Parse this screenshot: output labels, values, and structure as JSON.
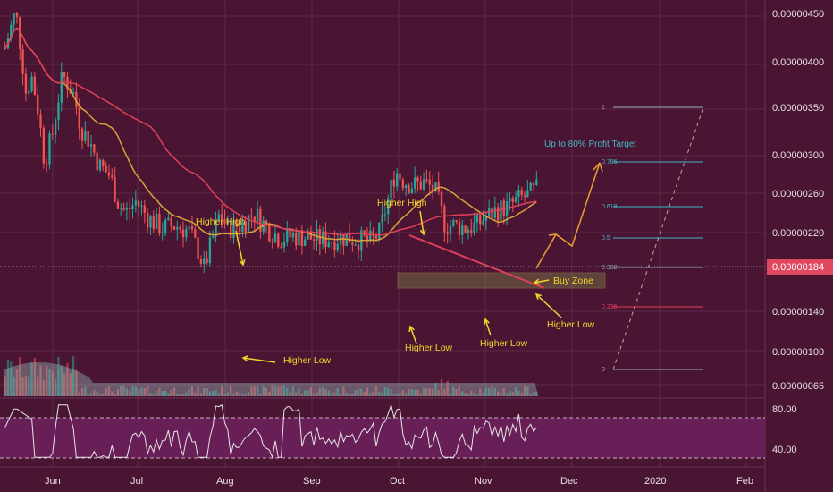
{
  "colors": {
    "background": "#4a1533",
    "grid": "#5a2a45",
    "up": "#26a69a",
    "down": "#ef5350",
    "ma_slow": "#e0405a",
    "ma_fast": "#d9a33a",
    "annotation": "#f2d52a",
    "target_text": "#3fb8c6",
    "rsi_line": "#e6e6e6",
    "rsi_band": "#6b1f5a",
    "buy_zone": "#8a9a4a"
  },
  "chart_data": {
    "type": "candlestick",
    "y_axis": {
      "labels": [
        "0.00000450",
        "0.00000400",
        "0.00000350",
        "0.00000300",
        "0.00000260",
        "0.00000220",
        "0.00000184",
        "0.00000140",
        "0.00000100",
        "0.00000065"
      ],
      "last_price": "0.00000184",
      "scale": "log"
    },
    "x_axis": {
      "labels": [
        "Jun",
        "Jul",
        "Aug",
        "Sep",
        "Oct",
        "Nov",
        "Dec",
        "2020",
        "Feb"
      ]
    },
    "price_series": [
      [
        0,
        380
      ],
      [
        0.4,
        460
      ],
      [
        0.8,
        300
      ],
      [
        1,
        330
      ],
      [
        1.2,
        290
      ],
      [
        1.5,
        210
      ],
      [
        1.8,
        240
      ],
      [
        2.2,
        330
      ],
      [
        2.6,
        300
      ],
      [
        2.9,
        250
      ],
      [
        3.2,
        235
      ],
      [
        3.6,
        205
      ],
      [
        4,
        195
      ],
      [
        4.3,
        170
      ],
      [
        4.6,
        160
      ],
      [
        5,
        170
      ],
      [
        5.5,
        155
      ],
      [
        6,
        148
      ],
      [
        6.5,
        150
      ],
      [
        7,
        146
      ],
      [
        7.4,
        130
      ],
      [
        7.6,
        120
      ],
      [
        7.8,
        132
      ],
      [
        8,
        145
      ],
      [
        8.2,
        160
      ],
      [
        8.5,
        148
      ],
      [
        9,
        150
      ],
      [
        9.5,
        160
      ],
      [
        10,
        148
      ],
      [
        10.5,
        140
      ],
      [
        11,
        142
      ],
      [
        11.5,
        141
      ],
      [
        12,
        139
      ],
      [
        12.5,
        140
      ],
      [
        13,
        141
      ],
      [
        13.5,
        139
      ],
      [
        14,
        138
      ],
      [
        14.3,
        145
      ],
      [
        14.6,
        170
      ],
      [
        14.9,
        200
      ],
      [
        15.2,
        190
      ],
      [
        15.6,
        185
      ],
      [
        16,
        188
      ],
      [
        16.4,
        180
      ],
      [
        16.8,
        150
      ],
      [
        17.2,
        150
      ],
      [
        17.6,
        148
      ],
      [
        18,
        150
      ],
      [
        18.4,
        158
      ],
      [
        18.8,
        163
      ],
      [
        19.2,
        165
      ],
      [
        19.6,
        172
      ],
      [
        20,
        176
      ],
      [
        20.4,
        183
      ]
    ],
    "rsi": {
      "labels": [
        "80.00",
        "40.00"
      ],
      "upper_band": 70,
      "lower_band": 30
    },
    "annotations": [
      {
        "id": "hh1",
        "text": "Higher High"
      },
      {
        "id": "hh2",
        "text": "Higher High"
      },
      {
        "id": "hl1",
        "text": "Higher Low"
      },
      {
        "id": "hl2",
        "text": "Higher Low"
      },
      {
        "id": "hl3",
        "text": "Higher Low"
      },
      {
        "id": "hl4",
        "text": "Higher Low"
      },
      {
        "id": "buy",
        "text": "Buy Zone"
      },
      {
        "id": "target",
        "text": "Up to 80% Profit Target"
      }
    ],
    "fib_levels": [
      {
        "label": "1",
        "color": "#9ab0c0"
      },
      {
        "label": "0.786",
        "color": "#3fb8c6"
      },
      {
        "label": "0.618",
        "color": "#3fb8c6"
      },
      {
        "label": "0.5",
        "color": "#3fb8c6"
      },
      {
        "label": "0.382",
        "color": "#8aa0a8"
      },
      {
        "label": "0.236",
        "color": "#e0405a"
      },
      {
        "label": "0",
        "color": "#9ab0c0"
      }
    ]
  }
}
